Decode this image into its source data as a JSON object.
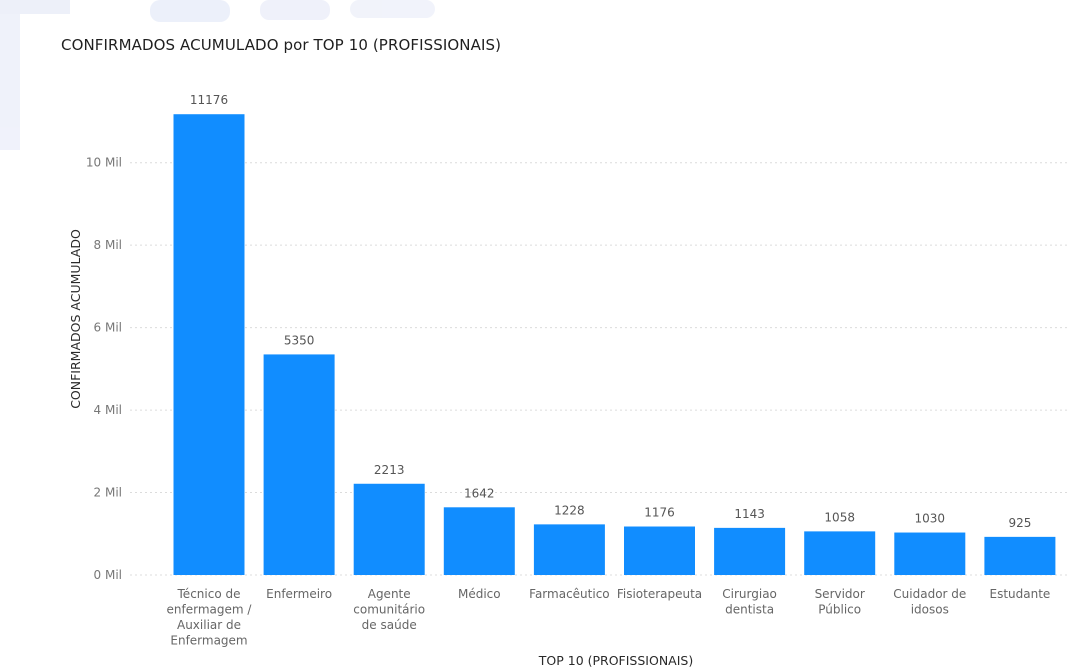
{
  "chart_data": {
    "type": "bar",
    "title": "CONFIRMADOS ACUMULADO por TOP 10 (PROFISSIONAIS)",
    "xlabel": "TOP 10 (PROFISSIONAIS)",
    "ylabel": "CONFIRMADOS ACUMULADO",
    "categories": [
      [
        "Técnico de",
        "enfermagem /",
        "Auxiliar de",
        "Enfermagem"
      ],
      [
        "Enfermeiro"
      ],
      [
        "Agente",
        "comunitário",
        "de saúde"
      ],
      [
        "Médico"
      ],
      [
        "Farmacêutico"
      ],
      [
        "Fisioterapeuta"
      ],
      [
        "Cirurgiao",
        "dentista"
      ],
      [
        "Servidor",
        "Público"
      ],
      [
        "Cuidador de",
        "idosos"
      ],
      [
        "Estudante"
      ]
    ],
    "values": [
      11176,
      5350,
      2213,
      1642,
      1228,
      1176,
      1143,
      1058,
      1030,
      925
    ],
    "data_labels": [
      "11176",
      "5350",
      "2213",
      "1642",
      "1228",
      "1176",
      "1143",
      "1058",
      "1030",
      "925"
    ],
    "yticks": [
      0,
      2000,
      4000,
      6000,
      8000,
      10000
    ],
    "ytick_labels": [
      "0 Mil",
      "2 Mil",
      "4 Mil",
      "6 Mil",
      "8 Mil",
      "10 Mil"
    ],
    "ylim": [
      0,
      12200
    ],
    "grid": true,
    "legend": "none",
    "bar_color": "#118DFF"
  }
}
